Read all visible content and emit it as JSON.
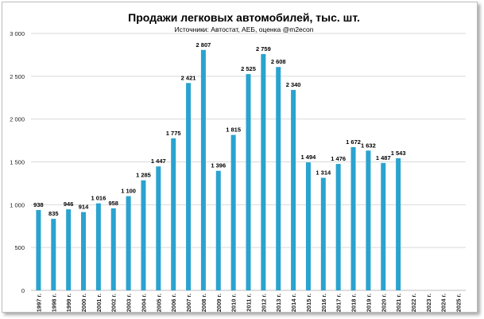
{
  "chart_data": {
    "type": "bar",
    "title": "Продажи легковых автомобилей, тыс. шт.",
    "subtitle": "Источники: Автостат, АЕБ, оценка @m2econ",
    "xlabel": "",
    "ylabel": "",
    "ylim": [
      0,
      3000
    ],
    "yticks": [
      0,
      500,
      1000,
      1500,
      2000,
      2500,
      3000
    ],
    "ytick_labels": [
      "0",
      "500",
      "1 000",
      "1 500",
      "2 000",
      "2 500",
      "3 000"
    ],
    "grid": true,
    "categories": [
      "1997 г.",
      "1998 г.",
      "1999 г.",
      "2000 г.",
      "2001 г.",
      "2002 г.",
      "2003 г.",
      "2004 г.",
      "2005 г.",
      "2006 г.",
      "2007 г.",
      "2008 г.",
      "2009 г.",
      "2010 г.",
      "2011 г.",
      "2012 г.",
      "2013 г.",
      "2014 г.",
      "2015 г.",
      "2016 г.",
      "2017 г.",
      "2018 г.",
      "2019 г.",
      "2020 г.",
      "2021 г.",
      "2022 г.",
      "2023 г.",
      "2024 г.",
      "2025 г."
    ],
    "values": [
      938,
      835,
      946,
      914,
      1016,
      958,
      1100,
      1285,
      1447,
      1775,
      2421,
      2807,
      1396,
      1815,
      2525,
      2759,
      2608,
      2340,
      1494,
      1314,
      1476,
      1672,
      1632,
      1487,
      1543,
      null,
      null,
      null,
      null
    ],
    "value_labels": [
      "938",
      "835",
      "946",
      "914",
      "1 016",
      "958",
      "1 100",
      "1 285",
      "1 447",
      "1 775",
      "2 421",
      "2 807",
      "1 396",
      "1 815",
      "2 525",
      "2 759",
      "2 608",
      "2 340",
      "1 494",
      "1 314",
      "1 476",
      "1 672",
      "1 632",
      "1 487",
      "1 543",
      "",
      "",
      "",
      ""
    ],
    "bar_color": "#2aa3cf"
  }
}
